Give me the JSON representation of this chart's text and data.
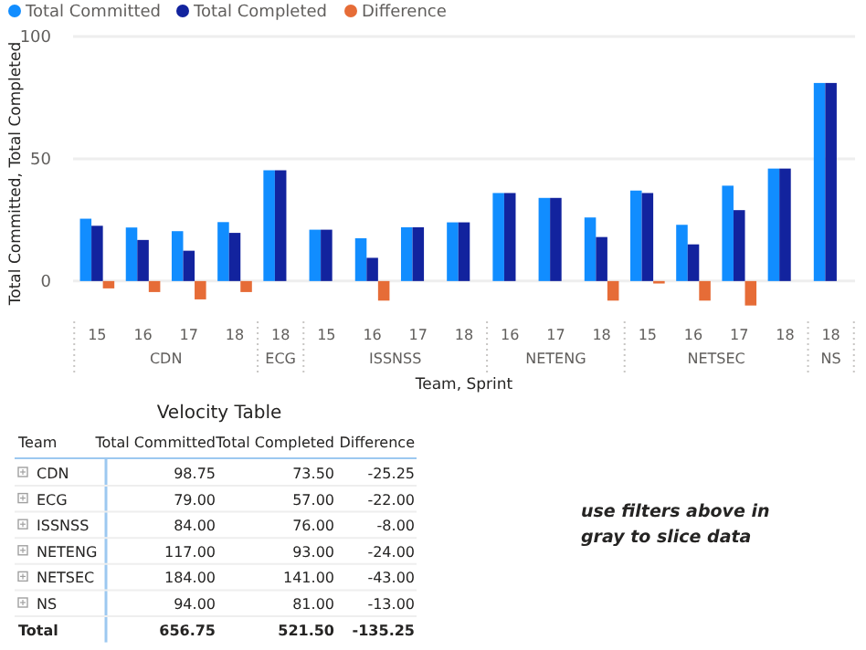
{
  "chart_data": [
    {
      "type": "bar",
      "xlabel": "Team, Sprint",
      "ylabel": "Total Committed, Total Completed",
      "categories": [
        "15",
        "16",
        "17",
        "18",
        "18",
        "15",
        "16",
        "17",
        "18",
        "16",
        "17",
        "18",
        "15",
        "16",
        "17",
        "18",
        "18"
      ],
      "annotations": [
        "CDN",
        "ECG",
        "ISSNSS",
        "NETENG",
        "NETSEC",
        "NS"
      ],
      "series": [
        {
          "name": "Total Committed",
          "color": "#118dff",
          "values": [
            25.5,
            21.9,
            20.4,
            24.1,
            45.3,
            21,
            17.5,
            22,
            24,
            36,
            34,
            26,
            37,
            23,
            39,
            46,
            81
          ]
        },
        {
          "name": "Total Completed",
          "color": "#12239e",
          "values": [
            22.6,
            16.8,
            12.4,
            19.7,
            45.3,
            21,
            9.5,
            22,
            24,
            36,
            34,
            18,
            36,
            15,
            29,
            46,
            81
          ]
        },
        {
          "name": "Difference",
          "color": "#e66c37",
          "values": [
            -3,
            -4.5,
            -7.5,
            -4.5,
            0,
            0,
            -8,
            0,
            0,
            0,
            0,
            -8,
            -1,
            -8,
            -10,
            0,
            0
          ]
        }
      ],
      "ylim": [
        -12,
        100
      ],
      "yticks": [
        0,
        50,
        100
      ],
      "grid": "y",
      "legend": "top left"
    },
    {
      "type": "other",
      "title": "Velocity Table",
      "xlabel": "Team",
      "categories": [
        "CDN",
        "ECG",
        "ISSNSS",
        "NETENG",
        "NETSEC",
        "NS",
        "Total"
      ],
      "series": [
        {
          "name": "Total Committed",
          "values": [
            98.75,
            79,
            84,
            117,
            184,
            94,
            656.75
          ],
          "value_labels": [
            "98.75",
            "79.00",
            "84.00",
            "117.00",
            "184.00",
            "94.00",
            "656.75"
          ]
        },
        {
          "name": "Total Completed",
          "values": [
            73.5,
            57,
            76,
            93,
            141,
            81,
            521.5
          ],
          "value_labels": [
            "73.50",
            "57.00",
            "76.00",
            "93.00",
            "141.00",
            "81.00",
            "521.50"
          ]
        },
        {
          "name": "Difference",
          "values": [
            -25.25,
            -22,
            -8,
            -24,
            -43,
            -13,
            -135.25
          ],
          "value_labels": [
            "-25.25",
            "-22.00",
            "-8.00",
            "-24.00",
            "-43.00",
            "-13.00",
            "-135.25"
          ]
        }
      ],
      "annotations": [
        "use filters above in gray to slice data"
      ]
    }
  ]
}
